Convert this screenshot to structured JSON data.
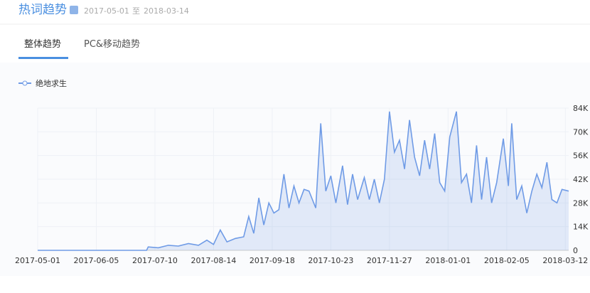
{
  "header": {
    "title": "热词趋势",
    "start_date": "2017-05-01",
    "range_sep": "至",
    "end_date": "2018-03-14"
  },
  "tabs": [
    "整体趋势",
    "PC&移动趋势"
  ],
  "chart_data": {
    "type": "area-line",
    "x": [
      "2017-05-01",
      "2017-06-01",
      "2017-07-05",
      "2017-07-06",
      "2017-07-12",
      "2017-07-18",
      "2017-07-24",
      "2017-07-30",
      "2017-08-05",
      "2017-08-10",
      "2017-08-14",
      "2017-08-18",
      "2017-08-22",
      "2017-08-27",
      "2017-09-01",
      "2017-09-04",
      "2017-09-07",
      "2017-09-10",
      "2017-09-13",
      "2017-09-16",
      "2017-09-19",
      "2017-09-22",
      "2017-09-25",
      "2017-09-28",
      "2017-10-01",
      "2017-10-04",
      "2017-10-07",
      "2017-10-10",
      "2017-10-14",
      "2017-10-17",
      "2017-10-20",
      "2017-10-23",
      "2017-10-26",
      "2017-10-30",
      "2017-11-02",
      "2017-11-05",
      "2017-11-08",
      "2017-11-12",
      "2017-11-15",
      "2017-11-18",
      "2017-11-21",
      "2017-11-24",
      "2017-11-27",
      "2017-11-30",
      "2017-12-03",
      "2017-12-06",
      "2017-12-09",
      "2017-12-12",
      "2017-12-15",
      "2017-12-18",
      "2017-12-21",
      "2017-12-24",
      "2017-12-27",
      "2017-12-30",
      "2018-01-02",
      "2018-01-06",
      "2018-01-09",
      "2018-01-12",
      "2018-01-15",
      "2018-01-18",
      "2018-01-21",
      "2018-01-24",
      "2018-01-27",
      "2018-01-30",
      "2018-02-03",
      "2018-02-06",
      "2018-02-08",
      "2018-02-11",
      "2018-02-14",
      "2018-02-17",
      "2018-02-20",
      "2018-02-23",
      "2018-02-26",
      "2018-03-01",
      "2018-03-04",
      "2018-03-07",
      "2018-03-10",
      "2018-03-14"
    ],
    "series": [
      {
        "name": "绝地求生",
        "color": "#6f9be6",
        "values": [
          0,
          0,
          0,
          2000,
          1500,
          3000,
          2500,
          4000,
          3000,
          6000,
          3500,
          12000,
          5000,
          7000,
          8000,
          20000,
          10000,
          31000,
          15000,
          28000,
          22000,
          24000,
          45000,
          25000,
          38000,
          28000,
          36000,
          35000,
          25000,
          75000,
          35000,
          44000,
          28000,
          50000,
          27000,
          45000,
          30000,
          43000,
          30000,
          42000,
          28000,
          42000,
          82000,
          58000,
          65000,
          48000,
          77000,
          55000,
          44000,
          65000,
          48000,
          69000,
          40000,
          35000,
          67000,
          82000,
          40000,
          45000,
          28000,
          62000,
          30000,
          55000,
          28000,
          40000,
          66000,
          38000,
          75000,
          30000,
          38000,
          22000,
          35000,
          45000,
          37000,
          52000,
          30000,
          28000,
          36000,
          35000
        ]
      }
    ],
    "xlim": [
      "2017-05-01",
      "2018-03-14"
    ],
    "xticks": [
      "2017-05-01",
      "2017-06-05",
      "2017-07-10",
      "2017-08-14",
      "2017-09-18",
      "2017-10-23",
      "2017-11-27",
      "2018-01-01",
      "2018-02-05",
      "2018-03-12"
    ],
    "ylim": [
      0,
      84000
    ],
    "yticks": [
      0,
      {
        "value": 14000,
        "label": "14K"
      },
      {
        "value": 28000,
        "label": "28K"
      },
      {
        "value": 42000,
        "label": "42K"
      },
      {
        "value": 56000,
        "label": "56K"
      },
      {
        "value": 70000,
        "label": "70K"
      },
      {
        "value": 84000,
        "label": "84K"
      }
    ],
    "grid": true
  }
}
